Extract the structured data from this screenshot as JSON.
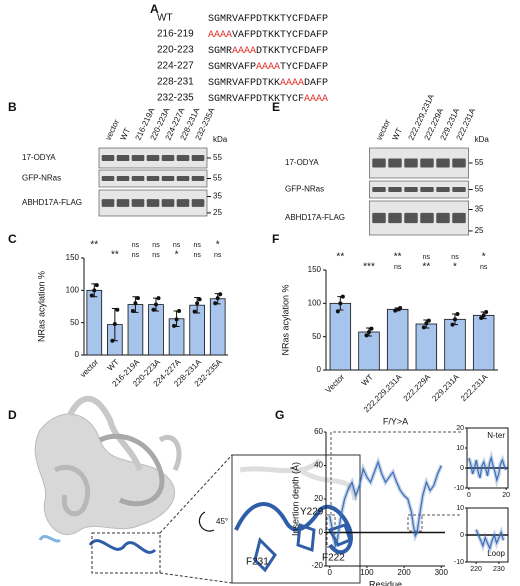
{
  "alignment": {
    "label": "A",
    "rows": [
      {
        "name": "WT",
        "segments": [
          {
            "text": "SGMRVAFPDTKKTYCFDAFP"
          }
        ]
      },
      {
        "name": "216-219",
        "segments": [
          {
            "text": "AAAA",
            "color": "#e0302a"
          },
          {
            "text": "VAFPDTKKTYCFDAFP"
          }
        ]
      },
      {
        "name": "220-223",
        "segments": [
          {
            "text": "SGMR"
          },
          {
            "text": "AAAA",
            "color": "#e0302a"
          },
          {
            "text": "DTKKTYCFDAFP"
          }
        ]
      },
      {
        "name": "224-227",
        "segments": [
          {
            "text": "SGMRVAFP"
          },
          {
            "text": "AAAA",
            "color": "#e0302a"
          },
          {
            "text": "TYCFDAFP"
          }
        ]
      },
      {
        "name": "228-231",
        "segments": [
          {
            "text": "SGMRVAFPDTKK"
          },
          {
            "text": "AAAA",
            "color": "#e0302a"
          },
          {
            "text": "DAFP"
          }
        ]
      },
      {
        "name": "232-235",
        "segments": [
          {
            "text": "SGMRVAFPDTKKTYCF"
          },
          {
            "text": "AAAA",
            "color": "#e0302a"
          }
        ]
      }
    ]
  },
  "blot_b": {
    "label": "B",
    "unit": "kDa",
    "lanes": [
      "vector",
      "WT",
      "216-219A",
      "220-223A",
      "224-227A",
      "228-231A",
      "232-235A"
    ],
    "rows": [
      {
        "name": "17-ODYA",
        "markers": [
          55
        ]
      },
      {
        "name": "GFP-NRas",
        "markers": [
          55
        ]
      },
      {
        "name": "ABHD17A-FLAG",
        "markers": [
          35,
          25
        ]
      }
    ]
  },
  "blot_e": {
    "label": "E",
    "unit": "kDa",
    "lanes": [
      "vector",
      "WT",
      "222,229,231A",
      "222,229A",
      "229,231A",
      "222,231A"
    ],
    "rows": [
      {
        "name": "17-ODYA",
        "markers": [
          55
        ]
      },
      {
        "name": "GFP-NRas",
        "markers": [
          55
        ]
      },
      {
        "name": "ABHD17A-FLAG",
        "markers": [
          35,
          25
        ]
      }
    ]
  },
  "structure": {
    "label": "D",
    "rotation": "45°",
    "residues": [
      "Y229",
      "F222",
      "F231"
    ]
  },
  "chart_data": [
    {
      "type": "bar",
      "panel": "C",
      "ylabel": "NRas acylation %",
      "categories": [
        "vector",
        "WT",
        "216-219A",
        "220-223A",
        "224-227A",
        "228-231A",
        "232-235A"
      ],
      "values": [
        100,
        47,
        78,
        78,
        56,
        77,
        87
      ],
      "errors": [
        10,
        25,
        12,
        10,
        12,
        12,
        8
      ],
      "points": [
        [
          92,
          100,
          108
        ],
        [
          22,
          48,
          70
        ],
        [
          68,
          80,
          88
        ],
        [
          70,
          78,
          88
        ],
        [
          45,
          55,
          68
        ],
        [
          67,
          80,
          86
        ],
        [
          80,
          88,
          94
        ]
      ],
      "color": "#a7c5ec",
      "ylim": [
        0,
        150
      ],
      "yticks": [
        0,
        50,
        100,
        150
      ],
      "annotations_vs_wt": [
        "**",
        null,
        "ns",
        "ns",
        "ns",
        "ns",
        "*"
      ],
      "annotations_vs_vector": [
        null,
        "**",
        "ns",
        "ns",
        "*",
        "ns",
        "ns"
      ],
      "annotation_colors": [
        "#4aa3df",
        "#3a1a3a"
      ]
    },
    {
      "type": "bar",
      "panel": "F",
      "ylabel": "NRas acylation %",
      "categories": [
        "Vector",
        "WT",
        "222,229,231A",
        "222,229A",
        "229,231A",
        "222,231A"
      ],
      "values": [
        100,
        57,
        91,
        69,
        76,
        82
      ],
      "errors": [
        10,
        6,
        2,
        6,
        8,
        5
      ],
      "points": [
        [
          88,
          100,
          110
        ],
        [
          52,
          57,
          62
        ],
        [
          89,
          91,
          93
        ],
        [
          64,
          70,
          74
        ],
        [
          68,
          76,
          84
        ],
        [
          78,
          82,
          87
        ]
      ],
      "color": "#a7c5ec",
      "ylim": [
        0,
        150
      ],
      "yticks": [
        0,
        50,
        100,
        150
      ],
      "annotations_vs_wt": [
        "**",
        null,
        "**",
        "ns",
        "ns",
        "*"
      ],
      "annotations_vs_vector": [
        null,
        "***",
        "ns",
        "**",
        "*",
        "ns"
      ],
      "annotation_colors": [
        "#4aa3df",
        "#3a1a3a"
      ]
    },
    {
      "type": "line",
      "panel": "G",
      "title": "F/Y>A",
      "xlabel": "Residue",
      "ylabel": "Insertion depth (Å)",
      "x": [
        0,
        5,
        10,
        15,
        20,
        25,
        30,
        40,
        50,
        60,
        70,
        80,
        90,
        100,
        110,
        120,
        130,
        140,
        150,
        160,
        170,
        180,
        190,
        200,
        210,
        220,
        225,
        230,
        235,
        240,
        250,
        260,
        270,
        280,
        290,
        300
      ],
      "series": [
        {
          "color": "#3a6db5",
          "values": [
            10,
            4,
            -2,
            -8,
            -5,
            2,
            10,
            20,
            26,
            30,
            22,
            28,
            38,
            33,
            30,
            36,
            42,
            35,
            30,
            33,
            36,
            30,
            25,
            22,
            20,
            12,
            4,
            -2,
            0,
            8,
            22,
            30,
            25,
            28,
            35,
            40
          ]
        }
      ],
      "xlim": [
        -10,
        310
      ],
      "ylim": [
        -20,
        60
      ],
      "xticks": [
        0,
        100,
        200,
        300
      ],
      "yticks": [
        -20,
        0,
        20,
        40,
        60
      ]
    },
    {
      "type": "line",
      "title": "N-ter",
      "x": [
        0,
        1,
        2,
        3,
        4,
        5,
        6,
        7,
        8,
        9,
        10,
        11,
        12,
        13,
        14,
        15,
        16,
        17,
        18,
        19,
        20
      ],
      "series": [
        {
          "color": "#3a6db5",
          "values": [
            5,
            2,
            -3,
            0,
            4,
            -2,
            -5,
            1,
            3,
            0,
            -4,
            2,
            5,
            1,
            -2,
            -6,
            -3,
            2,
            4,
            1,
            -1
          ]
        }
      ],
      "xlim": [
        -1,
        21
      ],
      "ylim": [
        -10,
        20
      ],
      "xticks": [
        0,
        20
      ],
      "yticks": [
        -10,
        0,
        10,
        20
      ]
    },
    {
      "type": "line",
      "title": "Loop",
      "x": [
        220,
        221,
        222,
        223,
        224,
        225,
        226,
        227,
        228,
        229,
        230,
        231,
        232
      ],
      "series": [
        {
          "color": "#3a6db5",
          "values": [
            2,
            0,
            -2,
            -4,
            -1,
            -3,
            -5,
            -2,
            0,
            -3,
            -1,
            1,
            -2
          ]
        }
      ],
      "xlim": [
        216,
        234
      ],
      "ylim": [
        -10,
        10
      ],
      "xticks": [
        220,
        230
      ],
      "yticks": [
        -10,
        0,
        10
      ]
    }
  ]
}
